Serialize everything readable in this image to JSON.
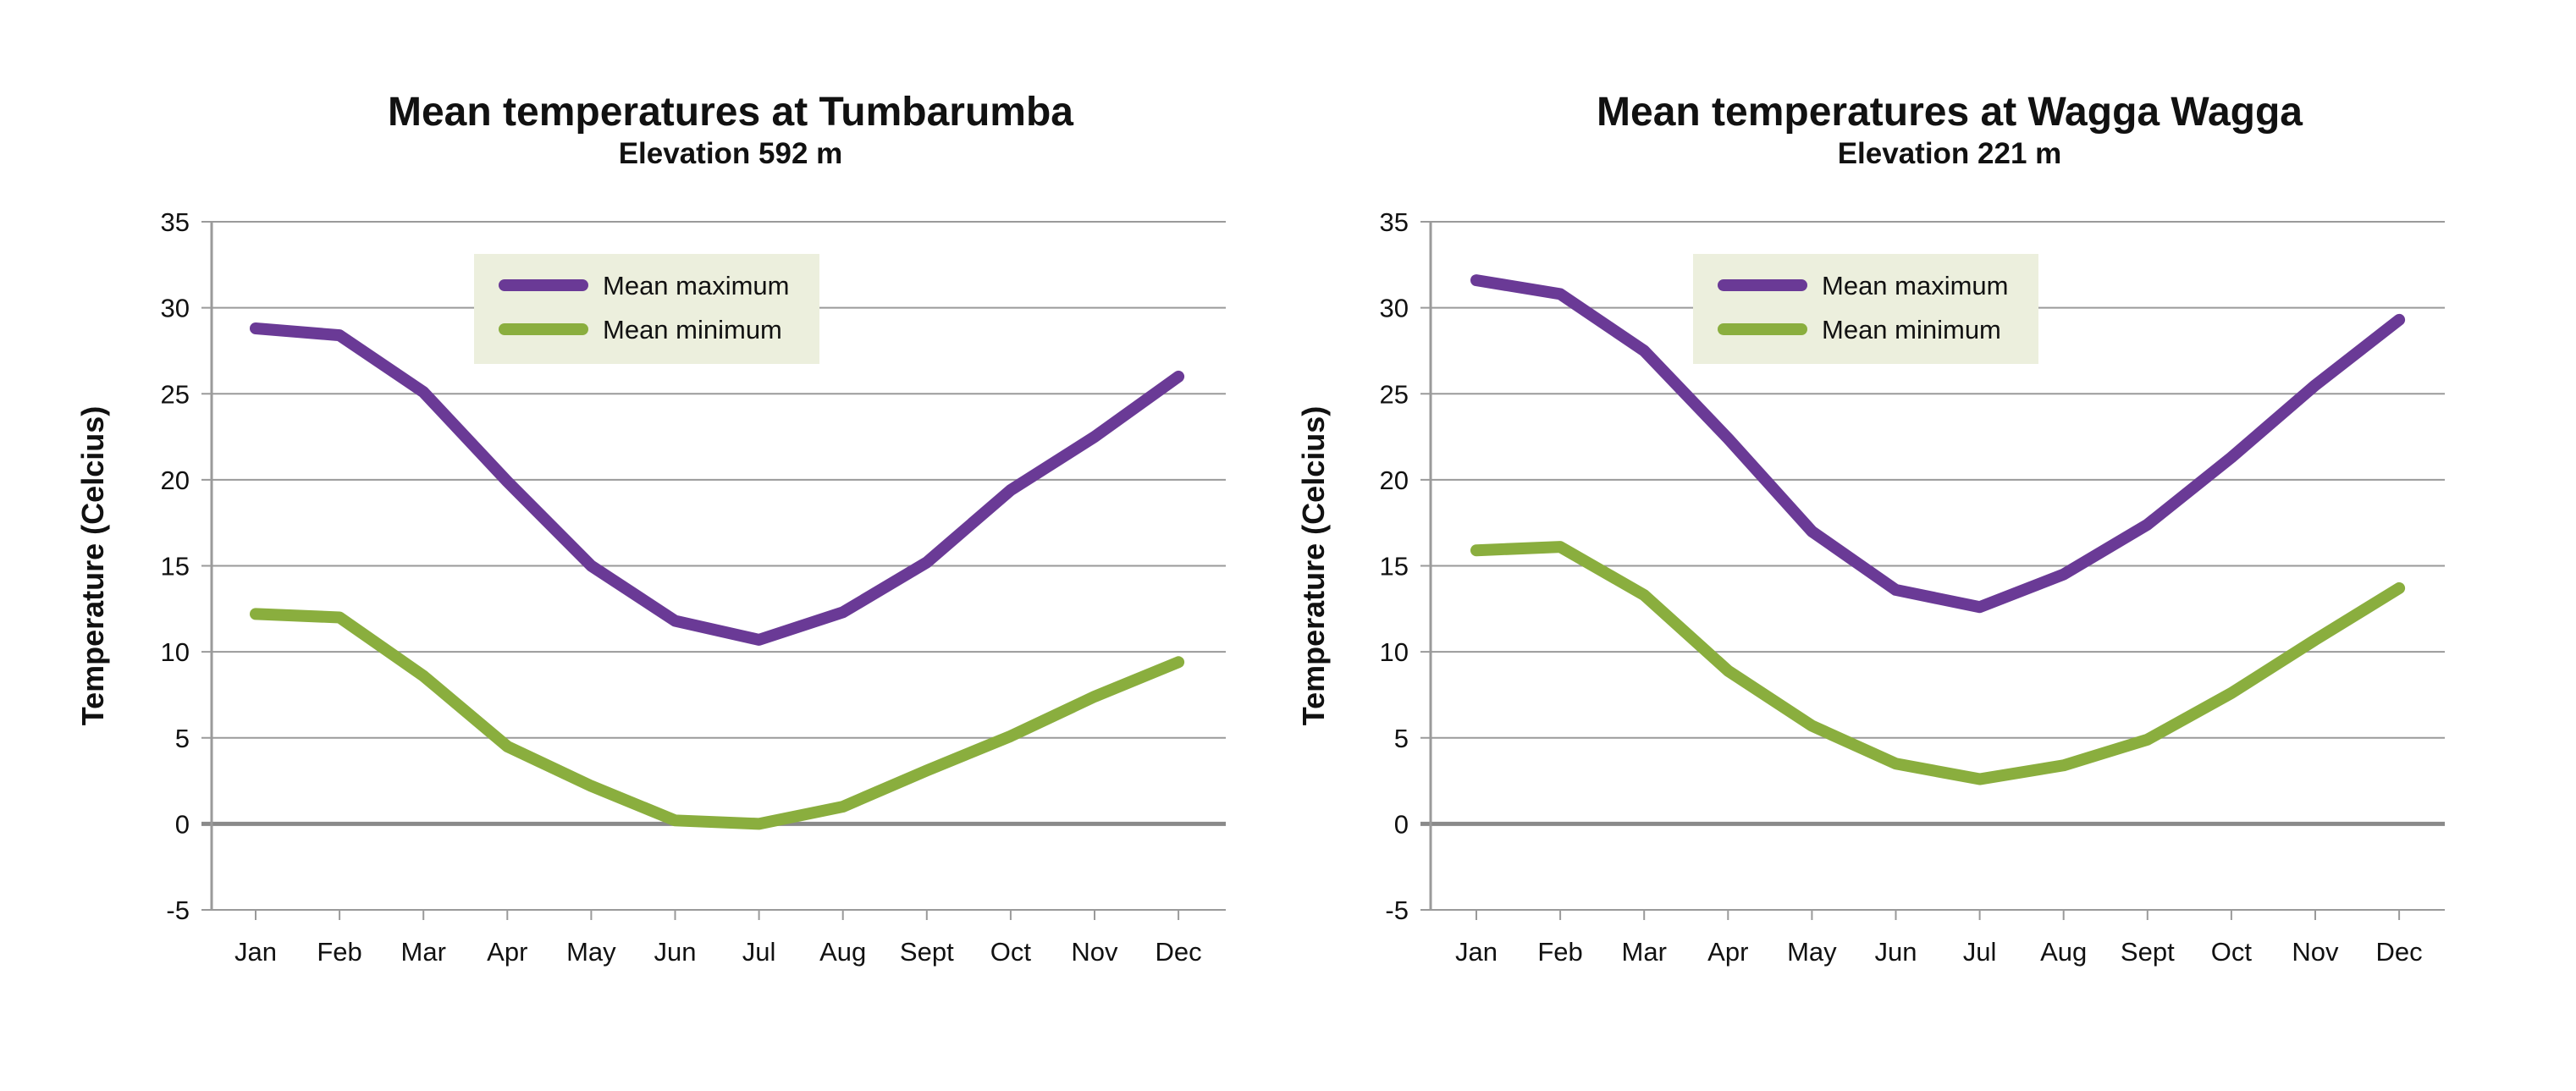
{
  "charts": [
    {
      "title": "Mean temperatures at Tumbarumba",
      "subtitle": "Elevation 592 m",
      "ylabel": "Temperature (Celcius)"
    },
    {
      "title": "Mean temperatures at Wagga Wagga",
      "subtitle": "Elevation 221 m",
      "ylabel": "Temperature (Celcius)"
    }
  ],
  "colors": {
    "max": "#6a3a96",
    "min": "#8aae3e",
    "legend_bg": "#ecefdd",
    "grid": "#9a9a9a",
    "zero_line": "#8a8a8a"
  },
  "chart_data": [
    {
      "type": "line",
      "title": "Mean temperatures at Tumbarumba",
      "subtitle": "Elevation 592 m",
      "xlabel": "",
      "ylabel": "Temperature (Celcius)",
      "categories": [
        "Jan",
        "Feb",
        "Mar",
        "Apr",
        "May",
        "Jun",
        "Jul",
        "Aug",
        "Sept",
        "Oct",
        "Nov",
        "Dec"
      ],
      "ylim": [
        -5,
        35
      ],
      "yticks": [
        -5,
        0,
        5,
        10,
        15,
        20,
        25,
        30,
        35
      ],
      "grid": true,
      "legend_position": "top-center",
      "series": [
        {
          "name": "Mean maximum",
          "color": "#6a3a96",
          "values": [
            28.8,
            28.4,
            25.1,
            19.9,
            15.0,
            11.8,
            10.7,
            12.3,
            15.2,
            19.4,
            22.5,
            26.0
          ]
        },
        {
          "name": "Mean minimum",
          "color": "#8aae3e",
          "values": [
            12.2,
            12.0,
            8.6,
            4.5,
            2.2,
            0.2,
            0.0,
            1.0,
            3.1,
            5.1,
            7.4,
            9.4
          ]
        }
      ]
    },
    {
      "type": "line",
      "title": "Mean temperatures at Wagga Wagga",
      "subtitle": "Elevation 221 m",
      "xlabel": "",
      "ylabel": "Temperature (Celcius)",
      "categories": [
        "Jan",
        "Feb",
        "Mar",
        "Apr",
        "May",
        "Jun",
        "Jul",
        "Aug",
        "Sept",
        "Oct",
        "Nov",
        "Dec"
      ],
      "ylim": [
        -5,
        35
      ],
      "yticks": [
        -5,
        0,
        5,
        10,
        15,
        20,
        25,
        30,
        35
      ],
      "grid": true,
      "legend_position": "top-center",
      "series": [
        {
          "name": "Mean maximum",
          "color": "#6a3a96",
          "values": [
            31.6,
            30.8,
            27.5,
            22.4,
            17.0,
            13.6,
            12.6,
            14.5,
            17.4,
            21.3,
            25.5,
            29.3
          ]
        },
        {
          "name": "Mean minimum",
          "color": "#8aae3e",
          "values": [
            15.9,
            16.1,
            13.3,
            8.9,
            5.7,
            3.5,
            2.6,
            3.4,
            4.9,
            7.6,
            10.7,
            13.7
          ]
        }
      ]
    }
  ]
}
